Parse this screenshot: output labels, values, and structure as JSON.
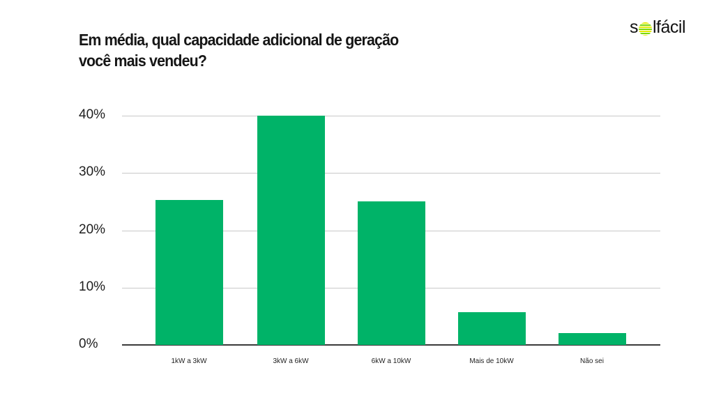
{
  "header": {
    "title_line1": "Em média, qual capacidade adicional de geração",
    "title_line2": "você mais vendeu?",
    "logo": {
      "prefix": "s",
      "suffix": "lfácil",
      "sun_icon": "sun-stripes-icon"
    }
  },
  "colors": {
    "bar": "#00b368",
    "grid": "#c8c8c8",
    "axis": "#3a3a3a",
    "text": "#161616"
  },
  "y_ticks": [
    "40%",
    "30%",
    "20%",
    "10%",
    "0%"
  ],
  "chart_data": {
    "type": "bar",
    "title": "Em média, qual capacidade adicional de geração você mais vendeu?",
    "xlabel": "",
    "ylabel": "",
    "categories": [
      "1kW a 3kW",
      "3kW a 6kW",
      "6kW a 10kW",
      "Mais de 10kW",
      "Não sei"
    ],
    "values": [
      25.3,
      40.0,
      25.0,
      5.7,
      2.1
    ],
    "ylim": [
      0,
      40
    ],
    "yticks": [
      0,
      10,
      20,
      30,
      40
    ],
    "ytick_format": "percent",
    "grid": true,
    "legend": null
  }
}
